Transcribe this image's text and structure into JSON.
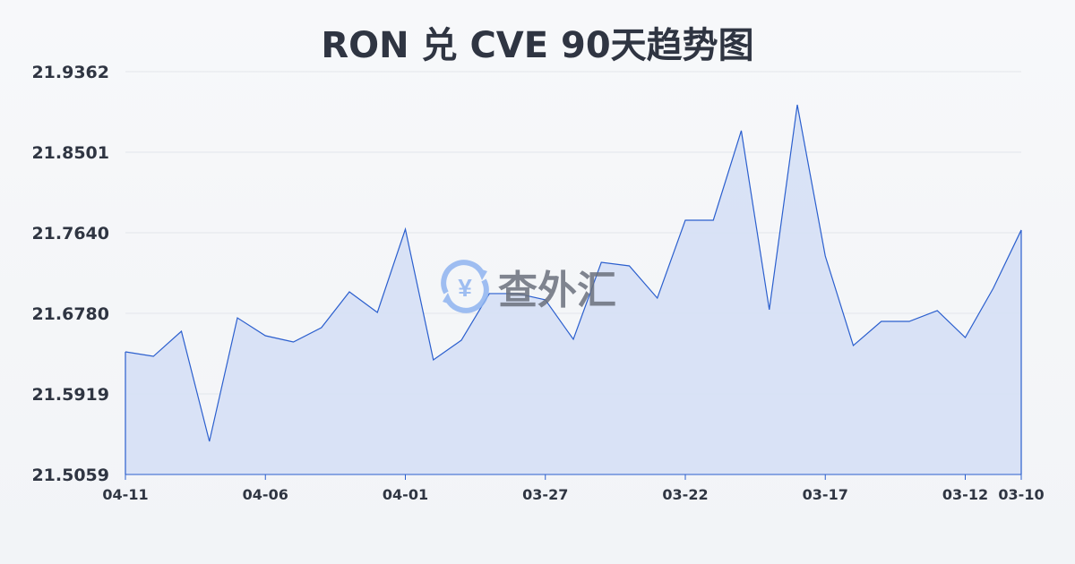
{
  "chart_data": {
    "type": "area",
    "title": "RON 兑 CVE 90天趋势图",
    "xlabel": "",
    "ylabel": "",
    "ylim": [
      21.5059,
      21.9362
    ],
    "y_ticks": [
      "21.9362",
      "21.8501",
      "21.7640",
      "21.6780",
      "21.5919",
      "21.5059"
    ],
    "x_tick_labels": [
      "04-11",
      "04-06",
      "04-01",
      "03-27",
      "03-22",
      "03-17",
      "03-12",
      "03-10"
    ],
    "x_tick_indices": [
      0,
      5,
      10,
      15,
      20,
      25,
      30,
      32
    ],
    "grid": true,
    "colors": {
      "line": "#2b5fce",
      "fill": "#d6e0f5",
      "grid": "#e3e6eb"
    },
    "values": [
      21.6369,
      21.6321,
      21.6589,
      21.5413,
      21.6732,
      21.6541,
      21.6474,
      21.6627,
      21.701,
      21.679,
      21.7679,
      21.6283,
      21.6493,
      21.6991,
      21.6991,
      21.6924,
      21.6503,
      21.7325,
      21.7287,
      21.6943,
      21.7775,
      21.7775,
      21.8731,
      21.6819,
      21.9008,
      21.7392,
      21.6436,
      21.6694,
      21.6694,
      21.6809,
      21.6522,
      21.7048,
      21.767
    ]
  },
  "watermark": {
    "text": "查外汇",
    "icon": "yen-exchange-icon"
  }
}
